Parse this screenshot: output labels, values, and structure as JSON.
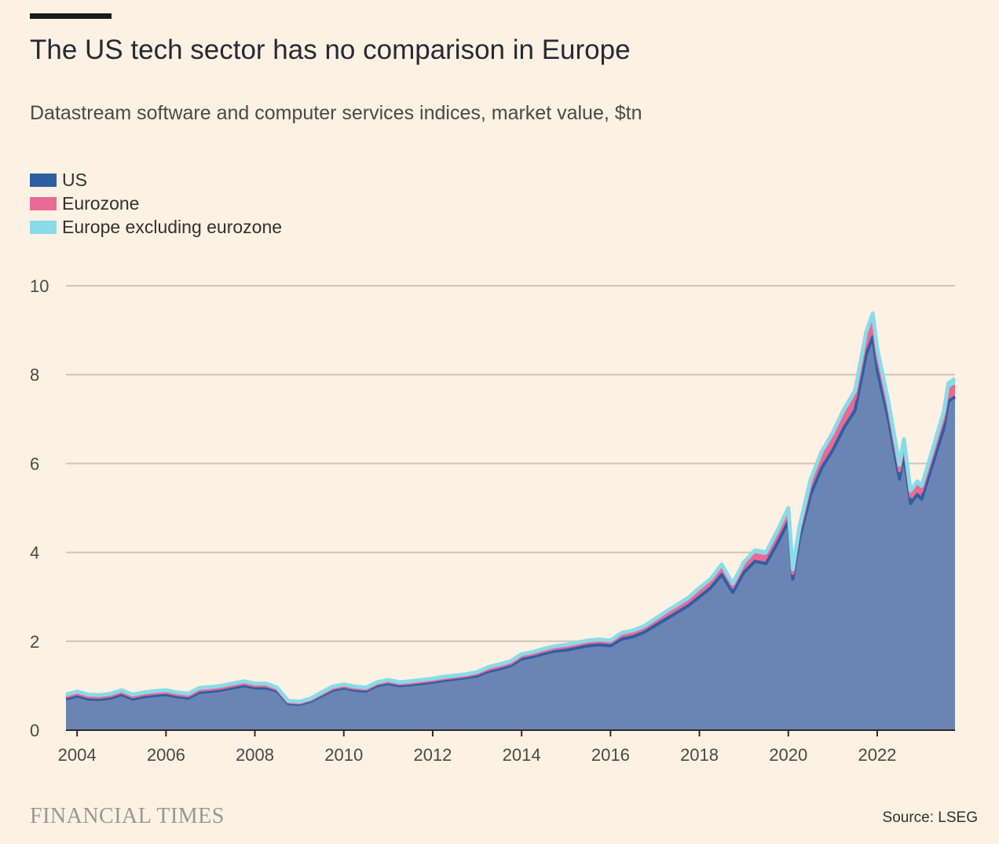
{
  "title": "The US tech sector has no comparison in Europe",
  "subtitle": "Datastream software and computer services indices, market value, $tn",
  "legend": [
    {
      "label": "US",
      "color": "#2f5ea3"
    },
    {
      "label": "Eurozone",
      "color": "#ea6a96"
    },
    {
      "label": "Europe excluding eurozone",
      "color": "#89dbe8"
    }
  ],
  "source": "Source: LSEG",
  "brand": "FINANCIAL TIMES",
  "chart_data": {
    "type": "area",
    "stacked": true,
    "title": "The US tech sector has no comparison in Europe",
    "subtitle": "Datastream software and computer services indices, market value, $tn",
    "xlabel": "",
    "ylabel": "",
    "xlim": [
      2003.75,
      2023.75
    ],
    "ylim": [
      0,
      10
    ],
    "x_ticks": [
      "2004",
      "2006",
      "2008",
      "2010",
      "2012",
      "2014",
      "2016",
      "2018",
      "2020",
      "2022"
    ],
    "x_tick_values": [
      2004,
      2006,
      2008,
      2010,
      2012,
      2014,
      2016,
      2018,
      2020,
      2022
    ],
    "y_ticks": [
      "0",
      "2",
      "4",
      "6",
      "8",
      "10"
    ],
    "y_tick_values": [
      0,
      2,
      4,
      6,
      8,
      10
    ],
    "grid": true,
    "legend_position": "top-left",
    "x": [
      2003.75,
      2004.0,
      2004.25,
      2004.5,
      2004.75,
      2005.0,
      2005.25,
      2005.5,
      2005.75,
      2006.0,
      2006.25,
      2006.5,
      2006.75,
      2007.0,
      2007.25,
      2007.5,
      2007.75,
      2008.0,
      2008.25,
      2008.5,
      2008.75,
      2009.0,
      2009.25,
      2009.5,
      2009.75,
      2010.0,
      2010.25,
      2010.5,
      2010.75,
      2011.0,
      2011.25,
      2011.5,
      2011.75,
      2012.0,
      2012.25,
      2012.5,
      2012.75,
      2013.0,
      2013.25,
      2013.5,
      2013.75,
      2014.0,
      2014.25,
      2014.5,
      2014.75,
      2015.0,
      2015.25,
      2015.5,
      2015.75,
      2016.0,
      2016.25,
      2016.5,
      2016.75,
      2017.0,
      2017.25,
      2017.5,
      2017.75,
      2018.0,
      2018.25,
      2018.5,
      2018.75,
      2019.0,
      2019.25,
      2019.5,
      2019.75,
      2020.0,
      2020.1,
      2020.25,
      2020.5,
      2020.75,
      2021.0,
      2021.25,
      2021.5,
      2021.75,
      2021.9,
      2022.0,
      2022.25,
      2022.5,
      2022.6,
      2022.75,
      2022.9,
      2023.0,
      2023.25,
      2023.5,
      2023.6,
      2023.75
    ],
    "series": [
      {
        "name": "US",
        "color": "#2f5ea3",
        "values": [
          0.7,
          0.77,
          0.7,
          0.69,
          0.72,
          0.8,
          0.7,
          0.75,
          0.78,
          0.8,
          0.75,
          0.72,
          0.85,
          0.87,
          0.9,
          0.95,
          1.0,
          0.95,
          0.95,
          0.88,
          0.6,
          0.58,
          0.65,
          0.77,
          0.9,
          0.95,
          0.9,
          0.88,
          1.0,
          1.05,
          1.0,
          1.02,
          1.05,
          1.08,
          1.12,
          1.15,
          1.18,
          1.22,
          1.32,
          1.38,
          1.45,
          1.6,
          1.65,
          1.72,
          1.78,
          1.8,
          1.85,
          1.9,
          1.92,
          1.9,
          2.05,
          2.1,
          2.2,
          2.35,
          2.5,
          2.65,
          2.8,
          3.0,
          3.2,
          3.5,
          3.1,
          3.55,
          3.8,
          3.75,
          4.2,
          4.7,
          3.4,
          4.3,
          5.3,
          5.9,
          6.3,
          6.8,
          7.2,
          8.45,
          8.85,
          8.1,
          7.0,
          5.65,
          6.2,
          5.1,
          5.3,
          5.2,
          6.0,
          6.8,
          7.4,
          7.5
        ]
      },
      {
        "name": "Eurozone",
        "color": "#ea6a96",
        "values": [
          0.05,
          0.05,
          0.05,
          0.05,
          0.05,
          0.05,
          0.05,
          0.05,
          0.05,
          0.05,
          0.05,
          0.05,
          0.05,
          0.05,
          0.05,
          0.05,
          0.05,
          0.05,
          0.05,
          0.04,
          0.03,
          0.03,
          0.03,
          0.04,
          0.04,
          0.04,
          0.04,
          0.04,
          0.04,
          0.04,
          0.04,
          0.04,
          0.04,
          0.04,
          0.04,
          0.04,
          0.04,
          0.05,
          0.05,
          0.05,
          0.05,
          0.06,
          0.06,
          0.06,
          0.06,
          0.07,
          0.07,
          0.07,
          0.07,
          0.07,
          0.08,
          0.08,
          0.08,
          0.09,
          0.1,
          0.1,
          0.11,
          0.12,
          0.12,
          0.14,
          0.12,
          0.14,
          0.15,
          0.15,
          0.17,
          0.18,
          0.13,
          0.17,
          0.21,
          0.23,
          0.24,
          0.26,
          0.27,
          0.3,
          0.32,
          0.29,
          0.24,
          0.19,
          0.21,
          0.17,
          0.18,
          0.18,
          0.2,
          0.23,
          0.25,
          0.25
        ]
      },
      {
        "name": "Europe excluding eurozone",
        "color": "#89dbe8",
        "values": [
          0.05,
          0.05,
          0.05,
          0.05,
          0.05,
          0.05,
          0.05,
          0.05,
          0.05,
          0.05,
          0.05,
          0.05,
          0.05,
          0.05,
          0.05,
          0.05,
          0.05,
          0.05,
          0.05,
          0.04,
          0.03,
          0.03,
          0.03,
          0.04,
          0.04,
          0.04,
          0.04,
          0.04,
          0.04,
          0.04,
          0.04,
          0.04,
          0.04,
          0.04,
          0.04,
          0.04,
          0.04,
          0.04,
          0.05,
          0.05,
          0.05,
          0.05,
          0.05,
          0.05,
          0.05,
          0.05,
          0.05,
          0.05,
          0.05,
          0.05,
          0.06,
          0.06,
          0.06,
          0.06,
          0.07,
          0.07,
          0.07,
          0.08,
          0.08,
          0.09,
          0.08,
          0.09,
          0.1,
          0.1,
          0.11,
          0.12,
          0.09,
          0.11,
          0.13,
          0.14,
          0.15,
          0.16,
          0.17,
          0.2,
          0.21,
          0.19,
          0.16,
          0.13,
          0.14,
          0.12,
          0.12,
          0.12,
          0.13,
          0.15,
          0.16,
          0.16
        ]
      }
    ]
  }
}
